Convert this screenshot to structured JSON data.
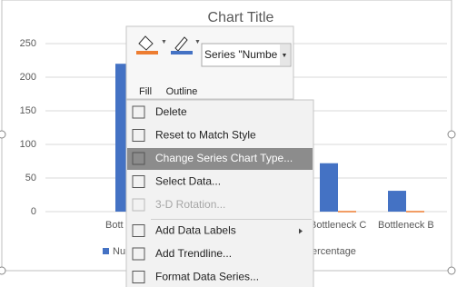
{
  "chart_data": {
    "type": "bar",
    "title": "Chart Title",
    "categories": [
      "Bott",
      null,
      null,
      "Bottleneck C",
      "Bottleneck B"
    ],
    "series": [
      {
        "name": "Nu",
        "color": "#4472c4",
        "values": [
          220,
          null,
          null,
          72,
          31
        ]
      },
      {
        "name": "ercentage",
        "color": "#ed7d31",
        "values": [
          null,
          null,
          null,
          1,
          1
        ]
      }
    ],
    "ylim": [
      0,
      250
    ],
    "yticks": [
      0,
      50,
      100,
      150,
      200,
      250
    ],
    "grid": true
  },
  "toolbar": {
    "fill": "Fill",
    "outline": "Outline",
    "series_select": "Series \"Numbe"
  },
  "menu": {
    "items": [
      {
        "label": "Delete"
      },
      {
        "label": "Reset to Match Style"
      },
      {
        "label": "Change Series Chart Type...",
        "highlighted": true
      },
      {
        "label": "Select Data..."
      },
      {
        "label": "3-D Rotation...",
        "disabled": true
      },
      {
        "label": "Add Data Labels",
        "submenu": true,
        "separator_before": true
      },
      {
        "label": "Add Trendline..."
      },
      {
        "label": "Format Data Series..."
      }
    ]
  }
}
